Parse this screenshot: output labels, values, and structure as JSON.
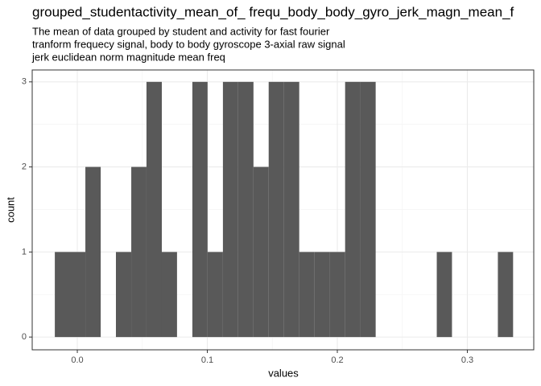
{
  "chart_data": {
    "type": "histogram",
    "title": "grouped_studentactivity_mean_of_ frequ_body_body_gyro_jerk_magn_mean_f",
    "subtitle": [
      "The mean of data grouped by student and activity for fast fourier",
      "tranform frequecy signal, body to body gyroscope 3-axial raw signal",
      "jerk euclidean norm magnitude mean freq"
    ],
    "x_label": "values",
    "y_label": "count",
    "bins": [
      -0.0173,
      -0.0056,
      0.0062,
      0.018,
      0.0297,
      0.0415,
      0.0532,
      0.065,
      0.0767,
      0.0885,
      0.1002,
      0.112,
      0.1237,
      0.1355,
      0.1472,
      0.159,
      0.1707,
      0.1825,
      0.1942,
      0.206,
      0.2177,
      0.2295,
      0.2412,
      0.253,
      0.2647,
      0.2765,
      0.2882,
      0.3,
      0.3117,
      0.3235,
      0.3352
    ],
    "values": [
      1,
      1,
      2,
      0,
      1,
      2,
      3,
      1,
      0,
      3,
      1,
      3,
      3,
      2,
      3,
      3,
      1,
      1,
      1,
      3,
      3,
      0,
      0,
      0,
      0,
      1,
      0,
      0,
      0,
      1
    ],
    "color": "#595959",
    "xlim": [
      -0.0347,
      0.3511
    ],
    "ylim": [
      -0.15,
      3.14
    ],
    "xticks": [
      {
        "value": 0,
        "label": "0.0"
      },
      0.1,
      0.2,
      0.3
    ],
    "yticks": [
      0,
      1,
      2,
      3
    ],
    "grid": true
  }
}
